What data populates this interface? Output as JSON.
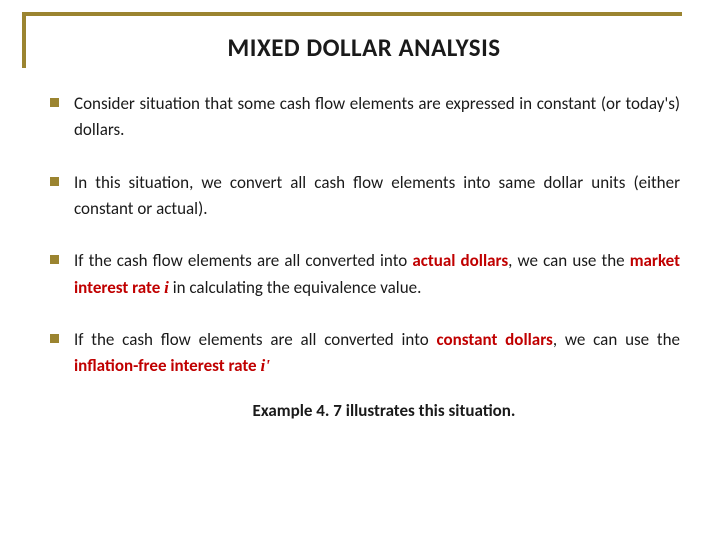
{
  "colors": {
    "accent": "#9b8430",
    "emphasis": "#c00000",
    "text": "#1a1a1a",
    "background": "#ffffff"
  },
  "typography": {
    "title_fontsize": 25,
    "body_fontsize": 17,
    "title_weight": 700,
    "body_weight": 400,
    "line_height": 1.55,
    "font_family": "Calibri"
  },
  "title": "MIXED  DOLLAR  ANALYSIS",
  "bullets": [
    {
      "pre": "Consider situation that some cash flow elements are expressed in constant (or today's) dollars."
    },
    {
      "pre": "In this situation, we convert all cash flow elements into same dollar units (either constant or actual)."
    },
    {
      "pre": "If the cash flow elements are all converted into ",
      "em1": "actual dollars",
      "mid1": ", we can use the ",
      "em2": "market interest rate",
      "mid2": "  ",
      "var": "i",
      "post": "  in calculating the equivalence value."
    },
    {
      "pre": "If the cash flow elements are all converted into ",
      "em1": "constant dollars",
      "mid1": ", we can use the ",
      "em2": "inflation-free interest rate",
      "mid2": "  ",
      "var": "i'",
      "post": ""
    }
  ],
  "example": "Example 4. 7 illustrates this situation."
}
